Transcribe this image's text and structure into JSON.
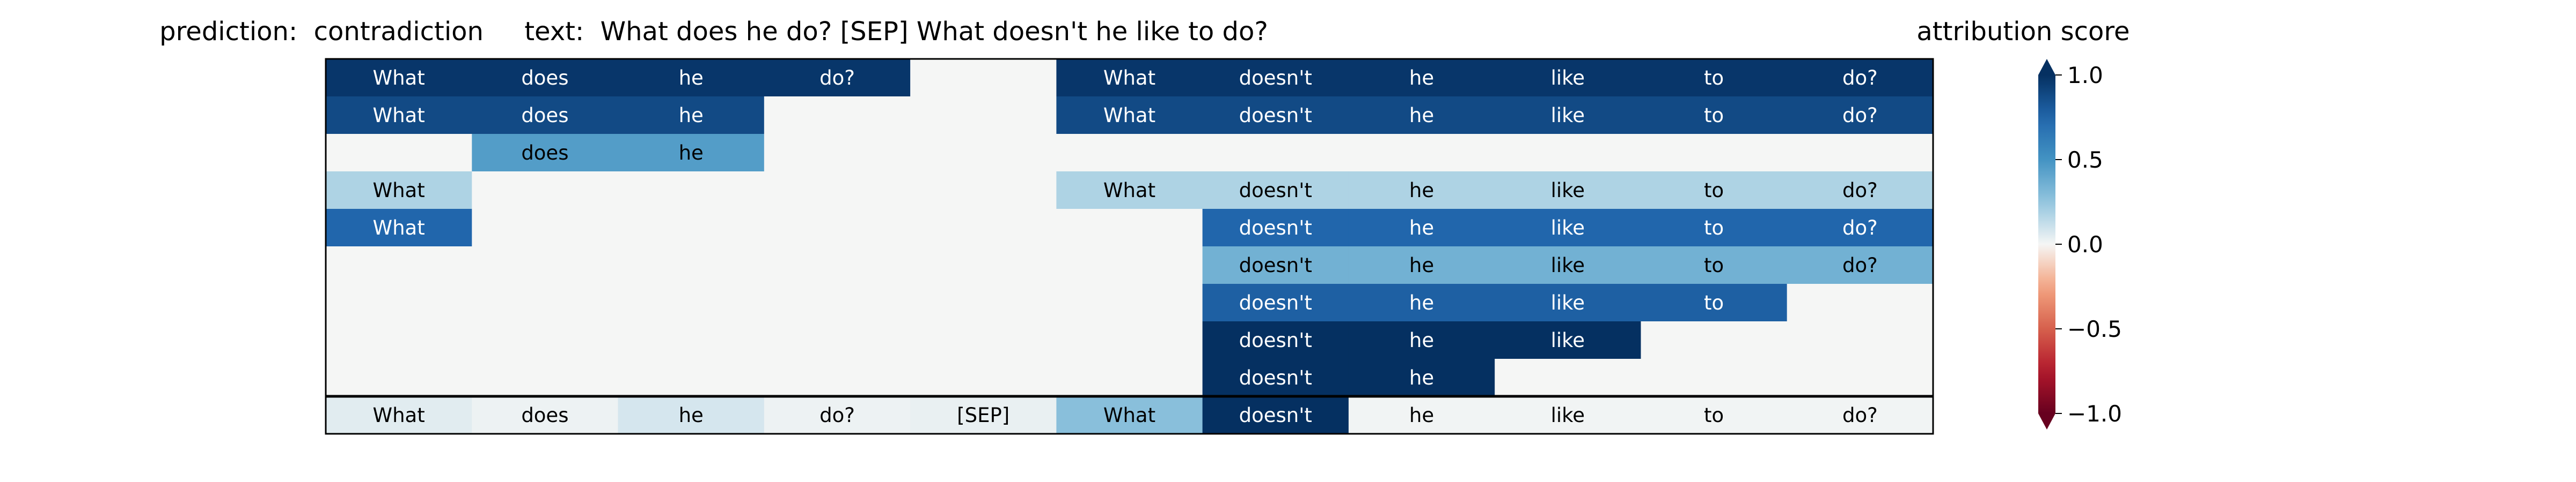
{
  "chart_data": {
    "type": "heatmap",
    "title": "prediction:  contradiction     text:  What does he do? [SEP] What doesn't he like to do?",
    "columns": 11,
    "cells": [
      [
        {
          "text": "What",
          "score": 0.97
        },
        {
          "text": "does",
          "score": 0.97
        },
        {
          "text": "he",
          "score": 0.97
        },
        {
          "text": "do?",
          "score": 0.97
        },
        {
          "text": "",
          "score": 0.0
        },
        {
          "text": "What",
          "score": 0.97
        },
        {
          "text": "doesn't",
          "score": 0.97
        },
        {
          "text": "he",
          "score": 0.97
        },
        {
          "text": "like",
          "score": 0.97
        },
        {
          "text": "to",
          "score": 0.97
        },
        {
          "text": "do?",
          "score": 0.97
        }
      ],
      [
        {
          "text": "What",
          "score": 0.88
        },
        {
          "text": "does",
          "score": 0.88
        },
        {
          "text": "he",
          "score": 0.88
        },
        {
          "text": "",
          "score": 0.0
        },
        {
          "text": "",
          "score": 0.0
        },
        {
          "text": "What",
          "score": 0.88
        },
        {
          "text": "doesn't",
          "score": 0.88
        },
        {
          "text": "he",
          "score": 0.88
        },
        {
          "text": "like",
          "score": 0.88
        },
        {
          "text": "to",
          "score": 0.88
        },
        {
          "text": "do?",
          "score": 0.88
        }
      ],
      [
        {
          "text": "",
          "score": 0.0
        },
        {
          "text": "does",
          "score": 0.45
        },
        {
          "text": "he",
          "score": 0.45
        },
        {
          "text": "",
          "score": 0.0
        },
        {
          "text": "",
          "score": 0.0
        },
        {
          "text": "",
          "score": 0.0
        },
        {
          "text": "",
          "score": 0.0
        },
        {
          "text": "",
          "score": 0.0
        },
        {
          "text": "",
          "score": 0.0
        },
        {
          "text": "",
          "score": 0.0
        },
        {
          "text": "",
          "score": 0.0
        }
      ],
      [
        {
          "text": "What",
          "score": 0.18
        },
        {
          "text": "",
          "score": 0.0
        },
        {
          "text": "",
          "score": 0.0
        },
        {
          "text": "",
          "score": 0.0
        },
        {
          "text": "",
          "score": 0.0
        },
        {
          "text": "What",
          "score": 0.18
        },
        {
          "text": "doesn't",
          "score": 0.18
        },
        {
          "text": "he",
          "score": 0.18
        },
        {
          "text": "like",
          "score": 0.18
        },
        {
          "text": "to",
          "score": 0.18
        },
        {
          "text": "do?",
          "score": 0.18
        }
      ],
      [
        {
          "text": "What",
          "score": 0.75
        },
        {
          "text": "",
          "score": 0.0
        },
        {
          "text": "",
          "score": 0.0
        },
        {
          "text": "",
          "score": 0.0
        },
        {
          "text": "",
          "score": 0.0
        },
        {
          "text": "",
          "score": 0.0
        },
        {
          "text": "doesn't",
          "score": 0.75
        },
        {
          "text": "he",
          "score": 0.75
        },
        {
          "text": "like",
          "score": 0.75
        },
        {
          "text": "to",
          "score": 0.75
        },
        {
          "text": "do?",
          "score": 0.75
        }
      ],
      [
        {
          "text": "",
          "score": 0.0
        },
        {
          "text": "",
          "score": 0.0
        },
        {
          "text": "",
          "score": 0.0
        },
        {
          "text": "",
          "score": 0.0
        },
        {
          "text": "",
          "score": 0.0
        },
        {
          "text": "",
          "score": 0.0
        },
        {
          "text": "doesn't",
          "score": 0.35
        },
        {
          "text": "he",
          "score": 0.35
        },
        {
          "text": "like",
          "score": 0.35
        },
        {
          "text": "to",
          "score": 0.35
        },
        {
          "text": "do?",
          "score": 0.35
        }
      ],
      [
        {
          "text": "",
          "score": 0.0
        },
        {
          "text": "",
          "score": 0.0
        },
        {
          "text": "",
          "score": 0.0
        },
        {
          "text": "",
          "score": 0.0
        },
        {
          "text": "",
          "score": 0.0
        },
        {
          "text": "",
          "score": 0.0
        },
        {
          "text": "doesn't",
          "score": 0.78
        },
        {
          "text": "he",
          "score": 0.78
        },
        {
          "text": "like",
          "score": 0.78
        },
        {
          "text": "to",
          "score": 0.78
        },
        {
          "text": "",
          "score": 0.0
        }
      ],
      [
        {
          "text": "",
          "score": 0.0
        },
        {
          "text": "",
          "score": 0.0
        },
        {
          "text": "",
          "score": 0.0
        },
        {
          "text": "",
          "score": 0.0
        },
        {
          "text": "",
          "score": 0.0
        },
        {
          "text": "",
          "score": 0.0
        },
        {
          "text": "doesn't",
          "score": 1.0
        },
        {
          "text": "he",
          "score": 1.0
        },
        {
          "text": "like",
          "score": 1.0
        },
        {
          "text": "",
          "score": 0.0
        },
        {
          "text": "",
          "score": 0.0
        }
      ],
      [
        {
          "text": "",
          "score": 0.0
        },
        {
          "text": "",
          "score": 0.0
        },
        {
          "text": "",
          "score": 0.0
        },
        {
          "text": "",
          "score": 0.0
        },
        {
          "text": "",
          "score": 0.0
        },
        {
          "text": "",
          "score": 0.0
        },
        {
          "text": "doesn't",
          "score": 1.0
        },
        {
          "text": "he",
          "score": 1.0
        },
        {
          "text": "",
          "score": 0.0
        },
        {
          "text": "",
          "score": 0.0
        },
        {
          "text": "",
          "score": 0.0
        }
      ]
    ],
    "bottom_row": [
      {
        "text": "What",
        "score": 0.05
      },
      {
        "text": "does",
        "score": 0.02
      },
      {
        "text": "he",
        "score": 0.08
      },
      {
        "text": "do?",
        "score": 0.02
      },
      {
        "text": "[SEP]",
        "score": 0.03
      },
      {
        "text": "What",
        "score": 0.28
      },
      {
        "text": "doesn't",
        "score": 1.0
      },
      {
        "text": "he",
        "score": 0.01
      },
      {
        "text": "like",
        "score": 0.01
      },
      {
        "text": "to",
        "score": 0.01
      },
      {
        "text": "do?",
        "score": 0.01
      }
    ],
    "colorbar": {
      "label": "attribution score",
      "range": [
        -1.0,
        1.0
      ],
      "ticks": [
        "1.0",
        "0.5",
        "0.0",
        "−0.5",
        "−1.0"
      ],
      "colormap": "RdBu"
    }
  }
}
